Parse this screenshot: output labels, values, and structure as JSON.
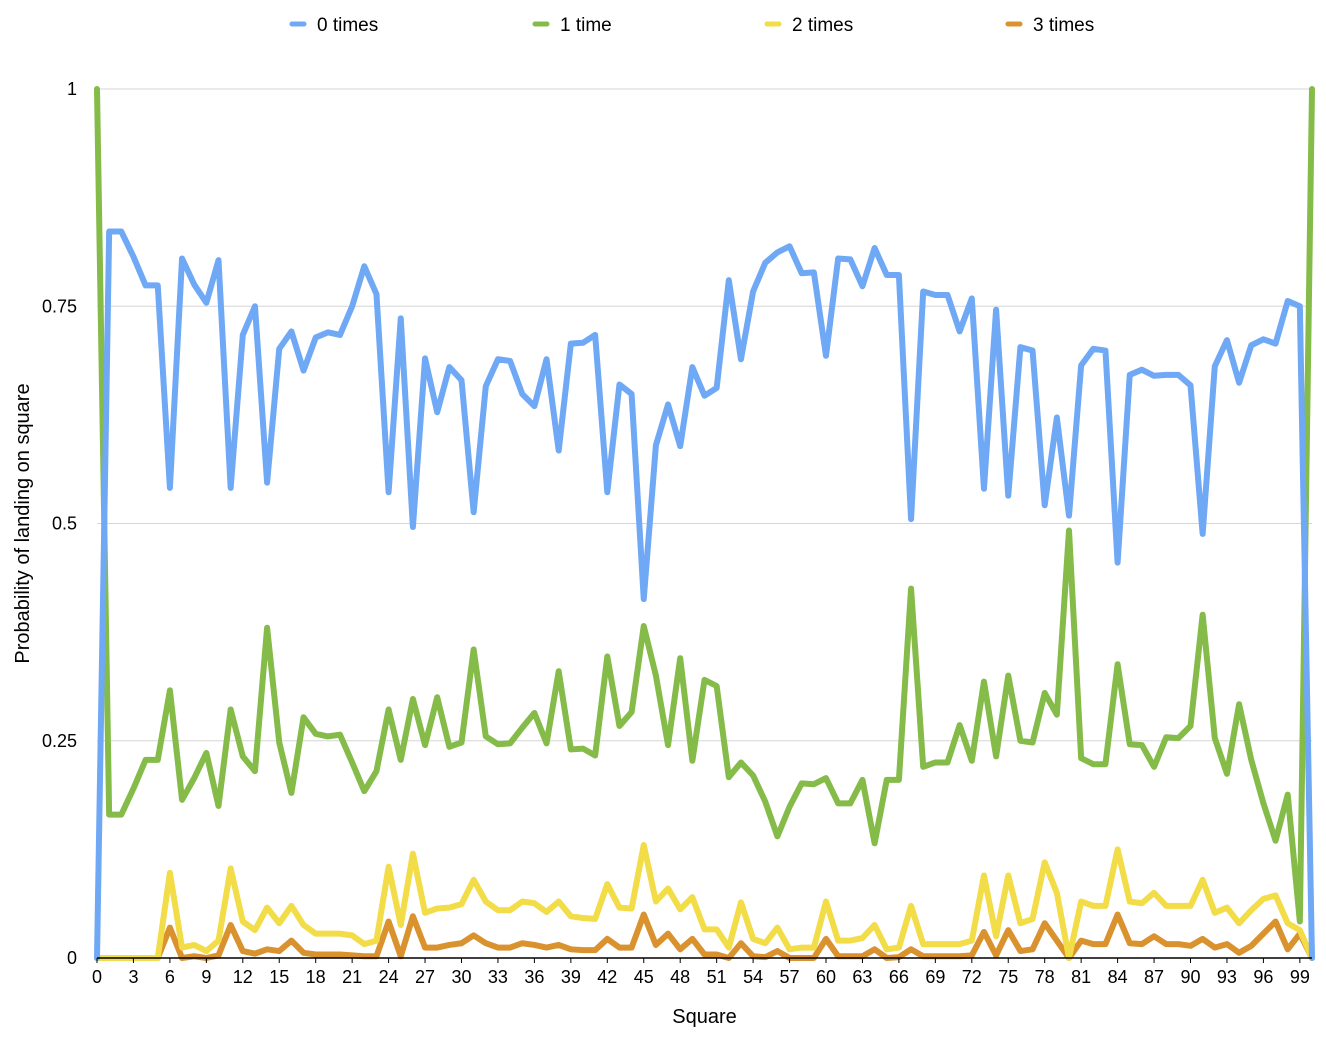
{
  "chart_data": {
    "type": "line",
    "xlabel": "Square",
    "ylabel": "Probability of landing on square",
    "ylim": [
      0,
      1
    ],
    "yticks": [
      0,
      0.25,
      0.5,
      0.75,
      1
    ],
    "ytick_labels": [
      "0",
      "0.25",
      "0.5",
      "0.75",
      "1"
    ],
    "xlim": [
      0,
      100
    ],
    "xticks": [
      0,
      3,
      6,
      9,
      12,
      15,
      18,
      21,
      24,
      27,
      30,
      33,
      36,
      39,
      42,
      45,
      48,
      51,
      54,
      57,
      60,
      63,
      66,
      69,
      72,
      75,
      78,
      81,
      84,
      87,
      90,
      93,
      96,
      99
    ],
    "grid": true,
    "legend_position": "top",
    "series": [
      {
        "name": "0 times",
        "color": "#6fa8f5",
        "values": [
          0.0,
          0.836,
          0.836,
          0.807,
          0.774,
          0.774,
          0.541,
          0.805,
          0.775,
          0.754,
          0.803,
          0.541,
          0.717,
          0.75,
          0.547,
          0.701,
          0.721,
          0.676,
          0.714,
          0.72,
          0.717,
          0.75,
          0.796,
          0.764,
          0.536,
          0.736,
          0.496,
          0.69,
          0.628,
          0.68,
          0.665,
          0.513,
          0.658,
          0.689,
          0.687,
          0.649,
          0.635,
          0.689,
          0.584,
          0.707,
          0.708,
          0.717,
          0.536,
          0.66,
          0.649,
          0.413,
          0.59,
          0.637,
          0.589,
          0.68,
          0.647,
          0.656,
          0.78,
          0.689,
          0.767,
          0.8,
          0.812,
          0.819,
          0.788,
          0.789,
          0.693,
          0.805,
          0.804,
          0.773,
          0.817,
          0.786,
          0.786,
          0.505,
          0.767,
          0.763,
          0.763,
          0.721,
          0.759,
          0.54,
          0.746,
          0.532,
          0.703,
          0.699,
          0.521,
          0.622,
          0.509,
          0.682,
          0.701,
          0.699,
          0.455,
          0.671,
          0.677,
          0.67,
          0.671,
          0.671,
          0.659,
          0.488,
          0.681,
          0.711,
          0.662,
          0.705,
          0.712,
          0.707,
          0.756,
          0.75,
          0.0
        ]
      },
      {
        "name": "1 time",
        "color": "#85bb48",
        "values": [
          1.0,
          0.165,
          0.165,
          0.195,
          0.228,
          0.228,
          0.308,
          0.182,
          0.207,
          0.236,
          0.175,
          0.286,
          0.232,
          0.215,
          0.38,
          0.248,
          0.19,
          0.277,
          0.258,
          0.255,
          0.257,
          0.225,
          0.192,
          0.215,
          0.286,
          0.228,
          0.298,
          0.245,
          0.3,
          0.243,
          0.248,
          0.355,
          0.255,
          0.246,
          0.247,
          0.265,
          0.282,
          0.247,
          0.33,
          0.24,
          0.241,
          0.233,
          0.347,
          0.267,
          0.283,
          0.382,
          0.325,
          0.245,
          0.345,
          0.227,
          0.32,
          0.313,
          0.208,
          0.225,
          0.21,
          0.18,
          0.14,
          0.174,
          0.201,
          0.2,
          0.207,
          0.178,
          0.178,
          0.205,
          0.132,
          0.205,
          0.205,
          0.425,
          0.22,
          0.225,
          0.225,
          0.268,
          0.227,
          0.318,
          0.232,
          0.325,
          0.25,
          0.248,
          0.305,
          0.28,
          0.492,
          0.23,
          0.223,
          0.223,
          0.338,
          0.246,
          0.245,
          0.22,
          0.254,
          0.253,
          0.267,
          0.395,
          0.253,
          0.212,
          0.292,
          0.228,
          0.178,
          0.135,
          0.188,
          0.042,
          1.0
        ]
      },
      {
        "name": "2 times",
        "color": "#f2dc47",
        "values": [
          0.0,
          0.0,
          0.0,
          0.0,
          0.0,
          0.0,
          0.098,
          0.012,
          0.015,
          0.008,
          0.02,
          0.103,
          0.042,
          0.032,
          0.058,
          0.04,
          0.06,
          0.038,
          0.028,
          0.028,
          0.028,
          0.026,
          0.016,
          0.02,
          0.105,
          0.038,
          0.12,
          0.052,
          0.057,
          0.058,
          0.062,
          0.09,
          0.065,
          0.055,
          0.055,
          0.065,
          0.063,
          0.053,
          0.065,
          0.048,
          0.046,
          0.045,
          0.085,
          0.058,
          0.057,
          0.13,
          0.065,
          0.08,
          0.056,
          0.07,
          0.033,
          0.033,
          0.012,
          0.064,
          0.022,
          0.017,
          0.035,
          0.01,
          0.012,
          0.012,
          0.065,
          0.02,
          0.02,
          0.023,
          0.038,
          0.01,
          0.012,
          0.06,
          0.016,
          0.016,
          0.016,
          0.016,
          0.02,
          0.095,
          0.025,
          0.095,
          0.04,
          0.045,
          0.11,
          0.075,
          0.0,
          0.065,
          0.06,
          0.06,
          0.125,
          0.065,
          0.063,
          0.075,
          0.06,
          0.06,
          0.06,
          0.09,
          0.052,
          0.058,
          0.04,
          0.055,
          0.068,
          0.072,
          0.04,
          0.032,
          0.0
        ]
      },
      {
        "name": "3 times",
        "color": "#d9922e",
        "values": [
          0.0,
          0.0,
          0.0,
          0.0,
          0.0,
          0.0,
          0.035,
          0.0,
          0.002,
          0.0,
          0.003,
          0.038,
          0.008,
          0.005,
          0.01,
          0.008,
          0.02,
          0.006,
          0.004,
          0.004,
          0.004,
          0.003,
          0.002,
          0.002,
          0.042,
          0.002,
          0.048,
          0.012,
          0.012,
          0.015,
          0.017,
          0.026,
          0.017,
          0.012,
          0.012,
          0.017,
          0.015,
          0.012,
          0.015,
          0.01,
          0.009,
          0.009,
          0.022,
          0.012,
          0.012,
          0.05,
          0.015,
          0.028,
          0.01,
          0.022,
          0.004,
          0.004,
          0.0,
          0.017,
          0.002,
          0.001,
          0.008,
          0.0,
          0.0,
          0.0,
          0.022,
          0.002,
          0.002,
          0.002,
          0.01,
          0.0,
          0.001,
          0.01,
          0.002,
          0.002,
          0.002,
          0.002,
          0.003,
          0.03,
          0.003,
          0.032,
          0.008,
          0.01,
          0.04,
          0.02,
          0.0,
          0.02,
          0.016,
          0.016,
          0.05,
          0.017,
          0.016,
          0.025,
          0.016,
          0.016,
          0.014,
          0.022,
          0.012,
          0.016,
          0.006,
          0.014,
          0.028,
          0.042,
          0.01,
          0.028,
          0.0
        ]
      }
    ]
  }
}
